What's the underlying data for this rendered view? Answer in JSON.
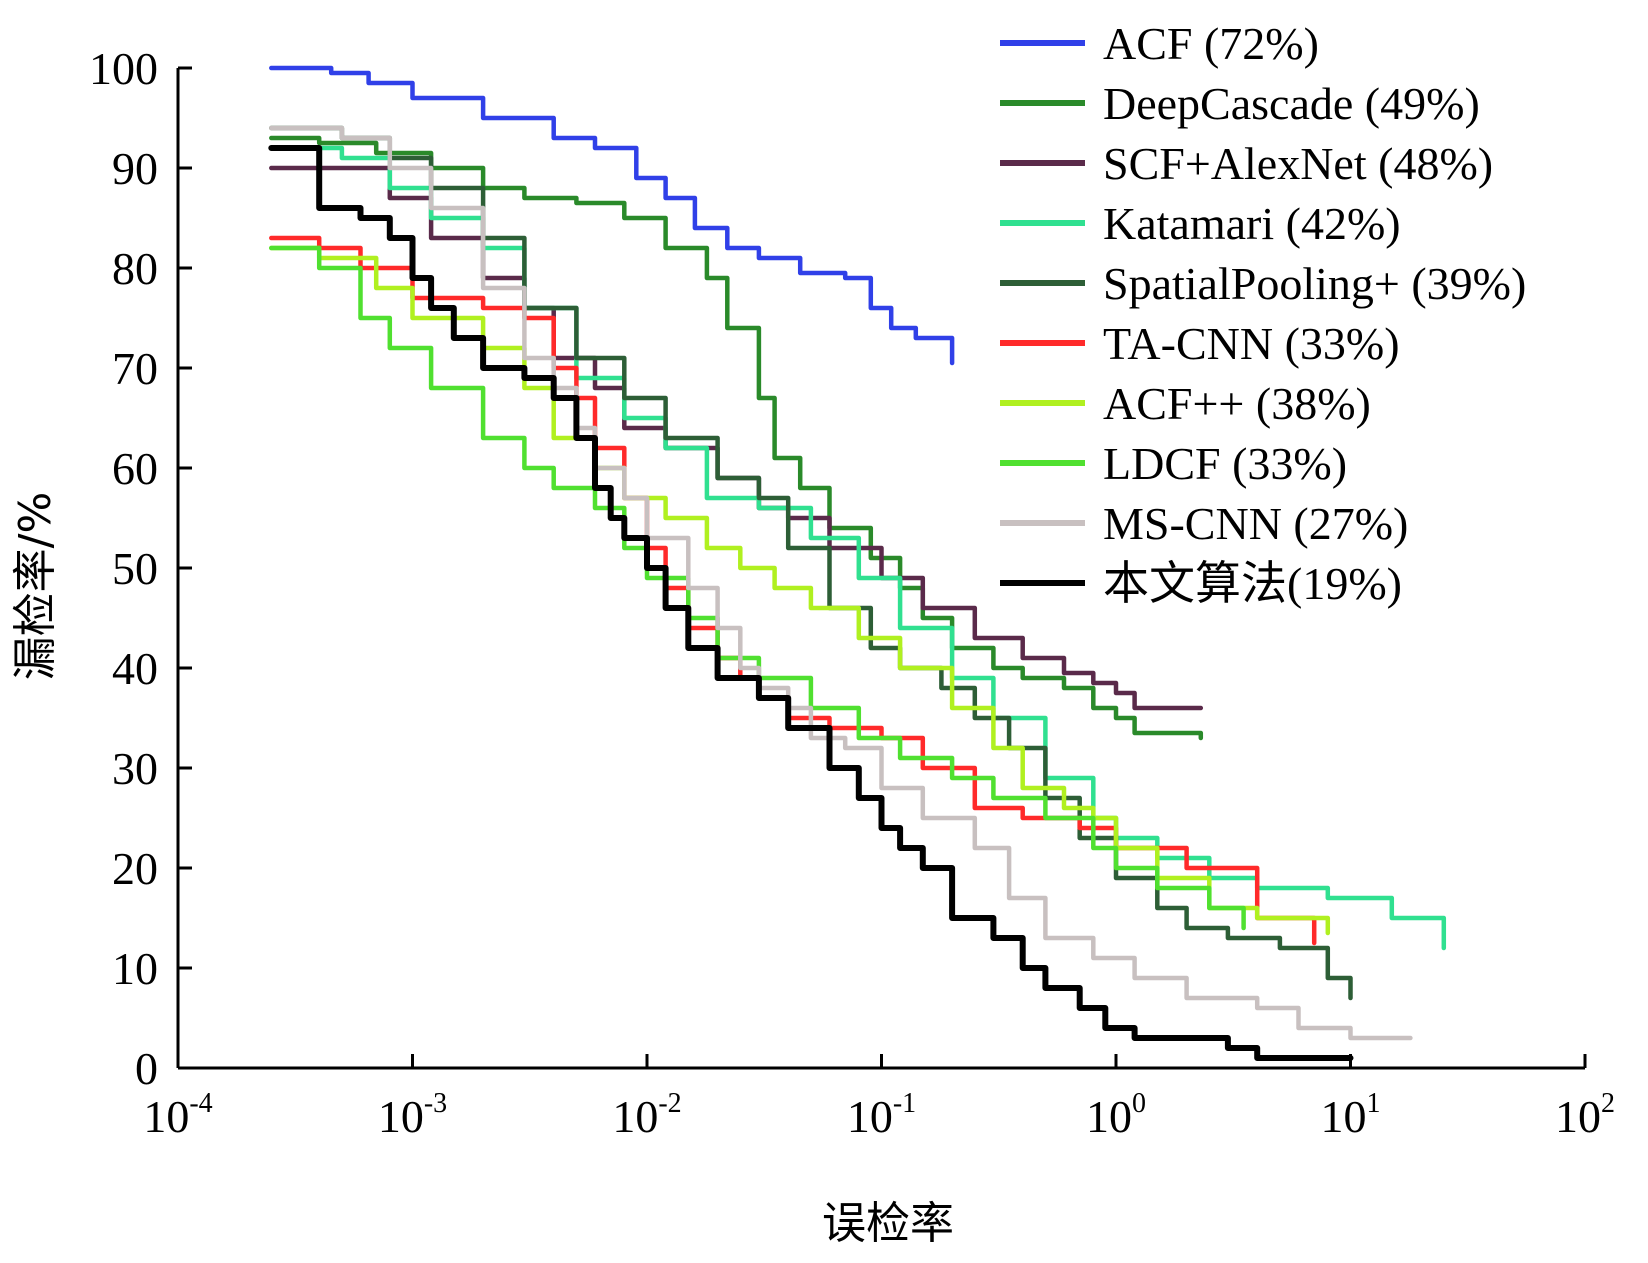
{
  "chart_data": {
    "type": "line",
    "xscale": "log",
    "xlabel": "误检率",
    "ylabel": "漏检率/%",
    "xlim": [
      0.0001,
      100
    ],
    "ylim": [
      0,
      100
    ],
    "grid": false,
    "legend_position": "top-right",
    "x_ticks": [
      {
        "base": "10",
        "exp": "-4"
      },
      {
        "base": "10",
        "exp": "-3"
      },
      {
        "base": "10",
        "exp": "-2"
      },
      {
        "base": "10",
        "exp": "-1"
      },
      {
        "base": "10",
        "exp": "0"
      },
      {
        "base": "10",
        "exp": "1"
      },
      {
        "base": "10",
        "exp": "2"
      }
    ],
    "y_ticks": [
      "0",
      "10",
      "20",
      "30",
      "40",
      "50",
      "60",
      "70",
      "80",
      "90",
      "100"
    ],
    "series": [
      {
        "name": "ACF (72%)",
        "color": "#3040e8",
        "x": [
          0.00025,
          0.00045,
          0.00065,
          0.001,
          0.002,
          0.004,
          0.006,
          0.009,
          0.012,
          0.016,
          0.022,
          0.03,
          0.045,
          0.07,
          0.09,
          0.11,
          0.14,
          0.2
        ],
        "y": [
          100,
          99.5,
          98.5,
          97,
          95,
          93,
          92,
          89,
          87,
          84,
          82,
          81,
          79.5,
          79,
          76,
          74,
          73,
          70.5
        ]
      },
      {
        "name": "DeepCascade (49%)",
        "color": "#2a8a2a",
        "x": [
          0.00025,
          0.0004,
          0.0007,
          0.0012,
          0.002,
          0.003,
          0.005,
          0.008,
          0.012,
          0.018,
          0.022,
          0.03,
          0.035,
          0.045,
          0.06,
          0.09,
          0.12,
          0.15,
          0.2,
          0.3,
          0.4,
          0.6,
          0.8,
          1.0,
          1.2,
          2.3
        ],
        "y": [
          93,
          92.5,
          91.5,
          90,
          88,
          87,
          86.5,
          85,
          82,
          79,
          74,
          67,
          61,
          58,
          54,
          51,
          48,
          45,
          42,
          40,
          39,
          38,
          36,
          35,
          33.5,
          33
        ]
      },
      {
        "name": "SCF+AlexNet (48%)",
        "color": "#5a2a4a",
        "x": [
          0.00025,
          0.0005,
          0.0008,
          0.0012,
          0.002,
          0.003,
          0.004,
          0.006,
          0.008,
          0.012,
          0.02,
          0.03,
          0.04,
          0.06,
          0.1,
          0.15,
          0.25,
          0.4,
          0.6,
          0.8,
          1.0,
          1.2,
          2.3
        ],
        "y": [
          90,
          90,
          87,
          83,
          79,
          76,
          71,
          68,
          64,
          62,
          59,
          56,
          55,
          52,
          49,
          46,
          43,
          41,
          39.5,
          38.5,
          37.5,
          36,
          36
        ]
      },
      {
        "name": "Katamari (42%)",
        "color": "#30e090",
        "x": [
          0.00025,
          0.0005,
          0.0008,
          0.0012,
          0.002,
          0.003,
          0.005,
          0.008,
          0.012,
          0.018,
          0.03,
          0.05,
          0.08,
          0.12,
          0.2,
          0.3,
          0.5,
          0.8,
          1.0,
          1.5,
          2.5,
          4.0,
          8.0,
          15.0,
          25.0
        ],
        "y": [
          92,
          91,
          88,
          85,
          82,
          76,
          69,
          65,
          62,
          57,
          56,
          53,
          49,
          44,
          39,
          35,
          29,
          25,
          23,
          21,
          19,
          18,
          17,
          15,
          12
        ]
      },
      {
        "name": "SpatialPooling+ (39%)",
        "color": "#2d5e36",
        "x": [
          0.00025,
          0.0005,
          0.0008,
          0.0012,
          0.002,
          0.003,
          0.005,
          0.008,
          0.012,
          0.02,
          0.03,
          0.04,
          0.06,
          0.09,
          0.12,
          0.18,
          0.25,
          0.35,
          0.5,
          0.7,
          1.0,
          1.5,
          2.0,
          3.0,
          5.0,
          8.0,
          10.0
        ],
        "y": [
          94,
          93,
          91,
          88,
          83,
          76,
          71,
          67,
          63,
          59,
          57,
          52,
          46,
          42,
          40,
          38,
          35,
          32,
          27,
          23,
          19,
          16,
          14,
          13,
          12,
          9,
          7
        ]
      },
      {
        "name": "TA-CNN (33%)",
        "color": "#ff2a2a",
        "x": [
          0.00025,
          0.0004,
          0.0006,
          0.001,
          0.002,
          0.003,
          0.004,
          0.005,
          0.006,
          0.008,
          0.01,
          0.012,
          0.015,
          0.02,
          0.025,
          0.03,
          0.04,
          0.06,
          0.1,
          0.15,
          0.25,
          0.4,
          0.7,
          1.0,
          2.0,
          4.0,
          7.0
        ],
        "y": [
          83,
          82,
          80,
          77,
          76,
          75,
          70,
          67,
          62,
          57,
          52,
          48,
          44,
          41,
          39,
          37,
          35,
          34,
          33,
          30,
          26,
          25,
          24,
          22,
          20,
          15,
          12.5
        ]
      },
      {
        "name": "ACF++ (38%)",
        "color": "#b0f020",
        "x": [
          0.00025,
          0.0004,
          0.0007,
          0.001,
          0.002,
          0.003,
          0.004,
          0.006,
          0.008,
          0.012,
          0.018,
          0.025,
          0.035,
          0.05,
          0.08,
          0.12,
          0.2,
          0.3,
          0.4,
          0.6,
          0.8,
          1.0,
          1.5,
          2.5,
          4.0,
          8.0
        ],
        "y": [
          82,
          81,
          78,
          75,
          72,
          68,
          63,
          60,
          57,
          55,
          52,
          50,
          48,
          46,
          43,
          40,
          36,
          32,
          28,
          26,
          25,
          22,
          19,
          16,
          15,
          13.5
        ]
      },
      {
        "name": "LDCF (33%)",
        "color": "#50e030",
        "x": [
          0.00025,
          0.0004,
          0.0006,
          0.0008,
          0.0012,
          0.002,
          0.003,
          0.004,
          0.006,
          0.008,
          0.01,
          0.015,
          0.02,
          0.03,
          0.05,
          0.08,
          0.12,
          0.2,
          0.3,
          0.5,
          0.8,
          1.0,
          1.5,
          2.5,
          3.5
        ],
        "y": [
          82,
          80,
          75,
          72,
          68,
          63,
          60,
          58,
          56,
          52,
          49,
          45,
          41,
          39,
          36,
          33,
          31,
          29,
          27,
          25,
          22,
          20,
          18,
          16,
          14
        ]
      },
      {
        "name": "MS-CNN (27%)",
        "color": "#c8c0c0",
        "x": [
          0.00025,
          0.0005,
          0.0008,
          0.0012,
          0.002,
          0.003,
          0.004,
          0.005,
          0.006,
          0.008,
          0.01,
          0.015,
          0.02,
          0.025,
          0.03,
          0.04,
          0.05,
          0.07,
          0.1,
          0.15,
          0.25,
          0.35,
          0.5,
          0.8,
          1.2,
          2.0,
          4.0,
          6.0,
          10.0,
          18.0
        ],
        "y": [
          94,
          93,
          90,
          86,
          78,
          71,
          68,
          64,
          60,
          57,
          53,
          48,
          44,
          40,
          38,
          36,
          33,
          32,
          28,
          25,
          22,
          17,
          13,
          11,
          9,
          7,
          6,
          4,
          3,
          3
        ]
      },
      {
        "name": "本文算法(19%)",
        "color": "#000000",
        "x": [
          0.00025,
          0.0004,
          0.0006,
          0.0008,
          0.001,
          0.0012,
          0.0015,
          0.002,
          0.003,
          0.004,
          0.005,
          0.006,
          0.007,
          0.008,
          0.01,
          0.012,
          0.015,
          0.02,
          0.03,
          0.04,
          0.06,
          0.08,
          0.1,
          0.12,
          0.15,
          0.2,
          0.3,
          0.4,
          0.5,
          0.7,
          0.9,
          1.2,
          2.0,
          3.0,
          4.0,
          10.0
        ],
        "y": [
          92,
          86,
          85,
          83,
          79,
          76,
          73,
          70,
          69,
          67,
          63,
          58,
          55,
          53,
          50,
          46,
          42,
          39,
          37,
          34,
          30,
          27,
          24,
          22,
          20,
          15,
          13,
          10,
          8,
          6,
          4,
          3,
          3,
          2,
          1,
          1
        ]
      }
    ]
  }
}
